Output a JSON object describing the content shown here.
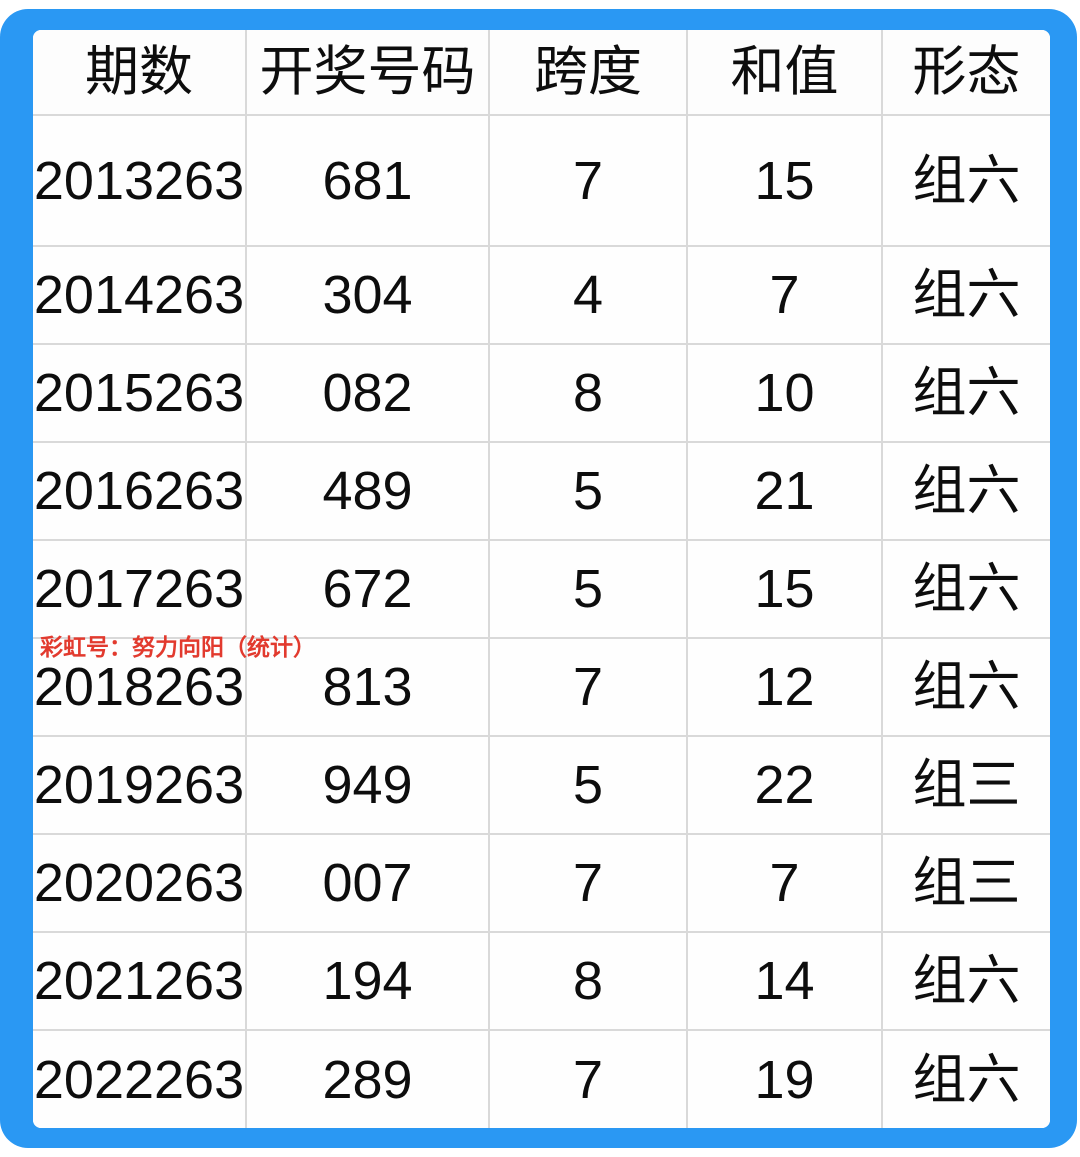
{
  "chart_data": {
    "type": "table",
    "title": "",
    "columns": [
      "期数",
      "开奖号码",
      "跨度",
      "和值",
      "形态"
    ],
    "rows": [
      [
        "2013263",
        "681",
        "7",
        "15",
        "组六"
      ],
      [
        "2014263",
        "304",
        "4",
        "7",
        "组六"
      ],
      [
        "2015263",
        "082",
        "8",
        "10",
        "组六"
      ],
      [
        "2016263",
        "489",
        "5",
        "21",
        "组六"
      ],
      [
        "2017263",
        "672",
        "5",
        "15",
        "组六"
      ],
      [
        "2018263",
        "813",
        "7",
        "12",
        "组六"
      ],
      [
        "2019263",
        "949",
        "5",
        "22",
        "组三"
      ],
      [
        "2020263",
        "007",
        "7",
        "7",
        "组三"
      ],
      [
        "2021263",
        "194",
        "8",
        "14",
        "组六"
      ],
      [
        "2022263",
        "289",
        "7",
        "19",
        "组六"
      ]
    ]
  },
  "watermark": {
    "text": "彩虹号：努力向阳（统计）",
    "color": "#e23a2e"
  },
  "colors": {
    "frame_blue": "#2a98f3",
    "grid_line": "#d9d9d9",
    "cell_background": "#fefefe",
    "text": "#0d0d0d"
  }
}
